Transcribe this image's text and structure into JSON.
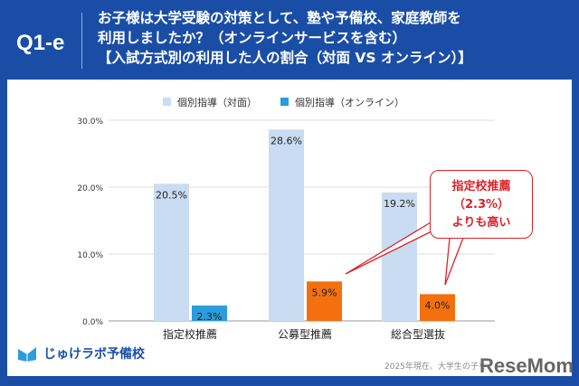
{
  "header": {
    "question_id": "Q1-e",
    "title_lines": [
      "お子様は大学受験の対策として、塾や予備校、家庭教師を",
      "利用しましたか？（オンラインサービスを含む）",
      "【入試方式別の利用した人の割合（対面 VS オンライン）】"
    ]
  },
  "chart_data": {
    "type": "bar",
    "categories": [
      "指定校推薦",
      "公募型推薦",
      "総合型選抜"
    ],
    "series": [
      {
        "name": "個別指導（対面）",
        "values": [
          20.5,
          28.6,
          19.2
        ],
        "color": "#c9dcf1"
      },
      {
        "name": "個別指導（オンライン）",
        "values": [
          2.3,
          5.9,
          4.0
        ],
        "color": "#2a9ddc"
      }
    ],
    "highlight_color": "#f4700f",
    "y_ticks": [
      "0.0%",
      "10.0%",
      "20.0%",
      "30.0%"
    ],
    "ylim": [
      0,
      30
    ],
    "grid": true,
    "legend": "top",
    "data_labels": [
      [
        "20.5%",
        "28.6%",
        "19.2%"
      ],
      [
        "2.3%",
        "5.9%",
        "4.0%"
      ]
    ],
    "annotation": [
      "指定校推薦",
      "（2.3%）",
      "よりも高い"
    ]
  },
  "footer": {
    "logo_text": "じゅけラボ予備校",
    "source": "2025年現在、大学生の子を",
    "brand": "ReseMom"
  }
}
